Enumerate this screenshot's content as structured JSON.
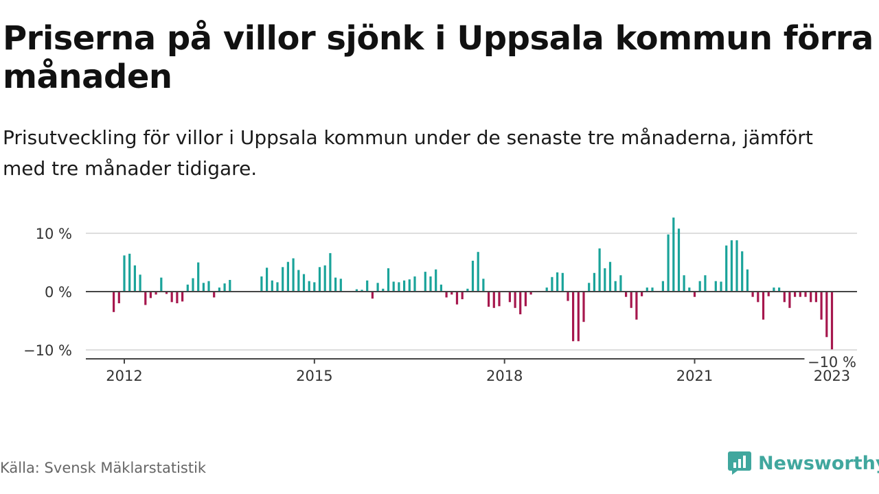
{
  "header": {
    "title": "Priserna på villor sjönk i Uppsala kommun förra månaden",
    "subtitle": "Prisutveckling för villor i Uppsala kommun under de senaste tre månaderna, jämfört med tre månader tidigare."
  },
  "footer": {
    "source": "Källa: Svensk Mäklarstatistik",
    "brand": "Newsworthy"
  },
  "colors": {
    "positive": "#1aa39a",
    "negative": "#a6174d",
    "zero_line": "#444444",
    "grid": "#dddddd",
    "brand": "#40a79e"
  },
  "chart_data": {
    "type": "bar",
    "x_unit": "month",
    "x_start": "2011-11",
    "values": [
      -3.5,
      -2,
      6.2,
      6.5,
      4.5,
      2.9,
      -2.3,
      -1.1,
      -0.5,
      2.4,
      -0.4,
      -1.8,
      -2,
      -1.7,
      1.2,
      2.3,
      5.0,
      1.5,
      1.8,
      -1,
      0.7,
      1.4,
      2.0,
      null,
      null,
      null,
      null,
      null,
      2.6,
      4.1,
      1.9,
      1.6,
      4.2,
      5.1,
      5.7,
      3.7,
      3.0,
      1.8,
      1.6,
      4.2,
      4.5,
      6.6,
      2.4,
      2.2,
      null,
      null,
      0.4,
      0.3,
      1.9,
      -1.2,
      1.5,
      0.5,
      4.0,
      1.7,
      1.6,
      1.9,
      2.1,
      2.6,
      null,
      3.4,
      2.6,
      3.8,
      1.2,
      -1,
      -0.5,
      -2.2,
      -1.3,
      0.5,
      5.3,
      6.8,
      2.2,
      -2.6,
      -2.8,
      -2.5,
      null,
      -1.8,
      -2.8,
      -3.9,
      -2.5,
      -0.5,
      null,
      null,
      0.7,
      2.5,
      3.3,
      3.2,
      -1.6,
      -8.5,
      -8.5,
      -5.2,
      1.5,
      3.2,
      7.4,
      4.0,
      5.1,
      1.8,
      2.8,
      -0.9,
      -2.8,
      -4.8,
      -0.8,
      0.7,
      0.7,
      null,
      1.8,
      9.8,
      12.7,
      10.8,
      2.8,
      0.7,
      -0.9,
      1.8,
      2.8,
      null,
      1.8,
      1.7,
      7.9,
      8.8,
      8.8,
      6.9,
      3.8,
      -0.9,
      -1.8,
      -4.8,
      -0.8,
      0.7,
      0.7,
      -1.8,
      -2.8,
      -0.9,
      -0.9,
      -0.9,
      -1.8,
      -1.8,
      -4.8,
      -7.8,
      -9.9
    ],
    "x_ticks": [
      "2012",
      "2015",
      "2018",
      "2021",
      "2023"
    ],
    "y_ticks": [
      10,
      0,
      -10
    ],
    "y_tick_labels": [
      "10 %",
      "0 %",
      "−10 %"
    ],
    "ylim": [
      -11,
      14
    ],
    "annotation": {
      "label": "−10 %",
      "value": -9.9
    },
    "grid": true
  }
}
